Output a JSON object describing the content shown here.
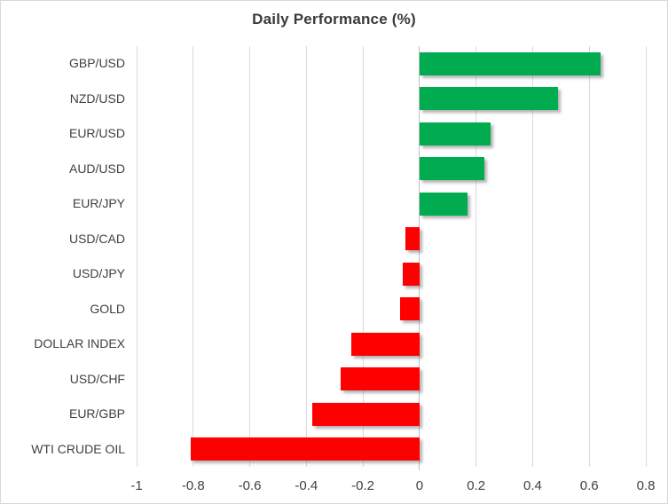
{
  "chart_data": {
    "type": "bar",
    "orientation": "horizontal",
    "title": "Daily Performance (%)",
    "categories": [
      "GBP/USD",
      "NZD/USD",
      "EUR/USD",
      "AUD/USD",
      "EUR/JPY",
      "USD/CAD",
      "USD/JPY",
      "GOLD",
      "DOLLAR INDEX",
      "USD/CHF",
      "EUR/GBP",
      "WTI CRUDE OIL"
    ],
    "values": [
      0.64,
      0.49,
      0.25,
      0.23,
      0.17,
      -0.05,
      -0.06,
      -0.07,
      -0.24,
      -0.28,
      -0.38,
      -0.81
    ],
    "xlim": [
      -1,
      0.8
    ],
    "x_ticks": [
      -1,
      -0.8,
      -0.6,
      -0.4,
      -0.2,
      0,
      0.2,
      0.4,
      0.6,
      0.8
    ],
    "x_tick_labels": [
      "-1",
      "-0.8",
      "-0.6",
      "-0.4",
      "-0.2",
      "0",
      "0.2",
      "0.4",
      "0.6",
      "0.8"
    ],
    "grid": "vertical",
    "legend": "none",
    "positive_color": "#00AC4F",
    "negative_color": "#FF0000",
    "gridline_color": "#d9d9d9",
    "zero_axis_color": "#bfbfbf"
  }
}
